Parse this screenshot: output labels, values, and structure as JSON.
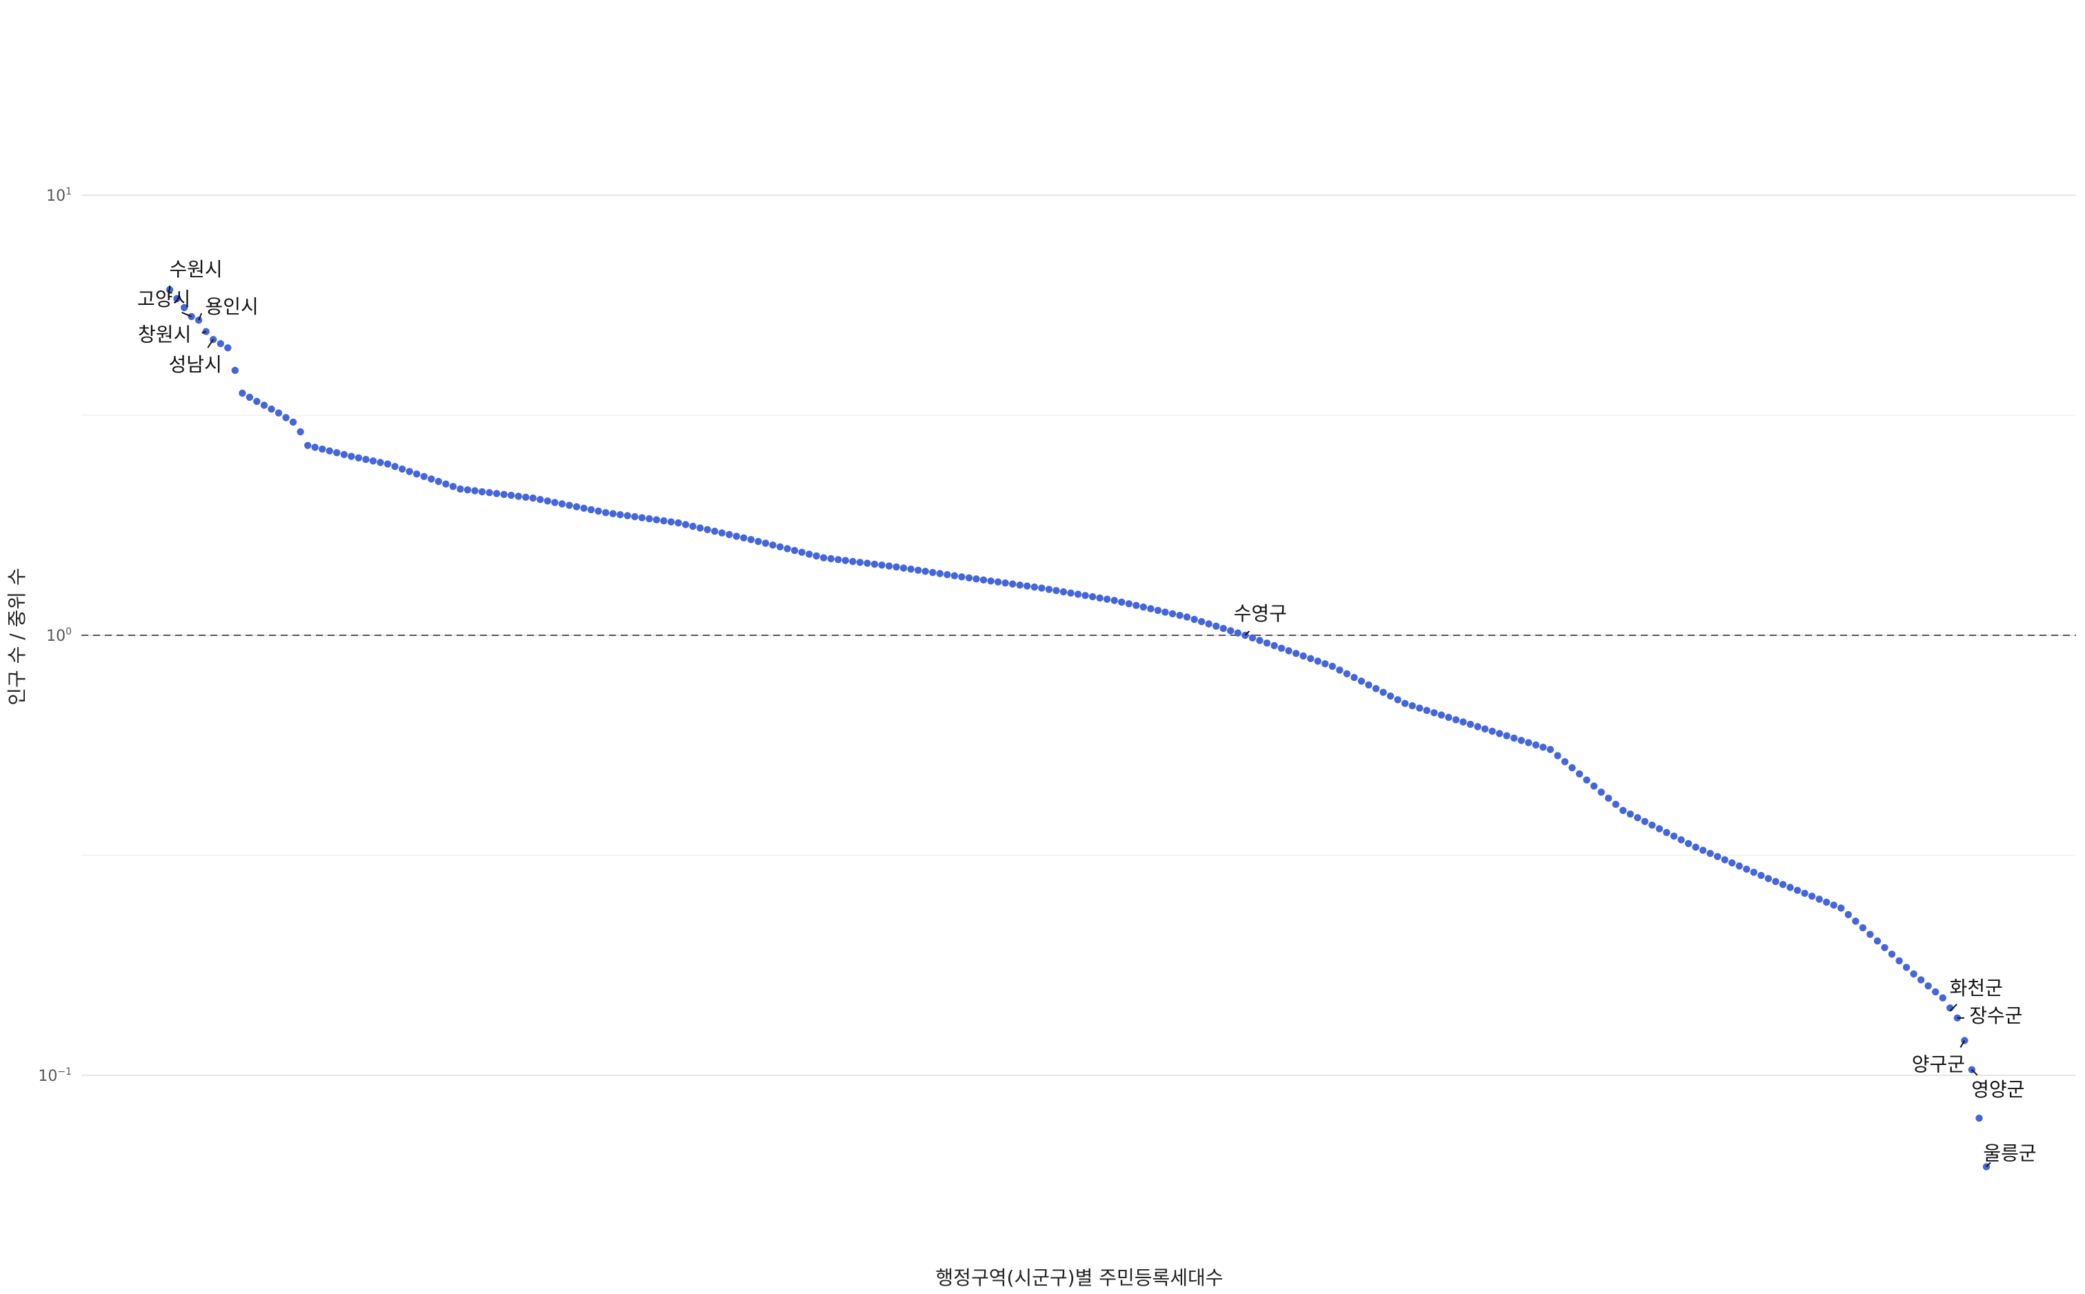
{
  "chart_data": {
    "type": "scatter",
    "xlabel": "행정구역(시군구)별 주민등록세대수",
    "ylabel": "인구 수 / 중위 수",
    "y_scale": "log10",
    "ylim": [
      0.05,
      20
    ],
    "y_ticks": [
      {
        "value": 10,
        "base": "10",
        "exp": "1"
      },
      {
        "value": 1,
        "base": "10",
        "exp": "0"
      },
      {
        "value": 0.1,
        "base": "10",
        "exp": "−1"
      }
    ],
    "reference_line": {
      "value": 1,
      "style": "dashed"
    },
    "grid": true,
    "legend": "none",
    "point_color": "#4466d6",
    "n_points": 251,
    "sorted_descending": true,
    "anchor_values": [
      [
        0,
        6.1
      ],
      [
        3,
        5.3
      ],
      [
        4,
        5.2
      ],
      [
        5,
        4.9
      ],
      [
        6,
        4.7
      ],
      [
        7,
        4.6
      ],
      [
        8,
        4.5
      ],
      [
        9,
        4.0
      ],
      [
        10,
        3.55
      ],
      [
        12,
        3.4
      ],
      [
        15,
        3.2
      ],
      [
        17,
        3.05
      ],
      [
        18,
        2.9
      ],
      [
        19,
        2.7
      ],
      [
        25,
        2.55
      ],
      [
        30,
        2.45
      ],
      [
        40,
        2.15
      ],
      [
        50,
        2.05
      ],
      [
        60,
        1.9
      ],
      [
        70,
        1.8
      ],
      [
        80,
        1.65
      ],
      [
        90,
        1.5
      ],
      [
        100,
        1.43
      ],
      [
        110,
        1.35
      ],
      [
        120,
        1.28
      ],
      [
        130,
        1.2
      ],
      [
        140,
        1.1
      ],
      [
        148,
        1.0
      ],
      [
        160,
        0.85
      ],
      [
        170,
        0.7
      ],
      [
        180,
        0.62
      ],
      [
        190,
        0.55
      ],
      [
        200,
        0.4
      ],
      [
        210,
        0.33
      ],
      [
        220,
        0.28
      ],
      [
        230,
        0.24
      ],
      [
        240,
        0.17
      ],
      [
        244,
        0.15
      ],
      [
        246,
        0.135
      ],
      [
        247,
        0.12
      ],
      [
        248,
        0.103
      ],
      [
        250,
        0.062
      ]
    ],
    "labeled_points": [
      {
        "index": 0,
        "name": "수원시",
        "value": 6.1
      },
      {
        "index": 3,
        "name": "고양시",
        "value": 5.3
      },
      {
        "index": 4,
        "name": "용인시",
        "value": 5.2
      },
      {
        "index": 5,
        "name": "창원시",
        "value": 4.9
      },
      {
        "index": 6,
        "name": "성남시",
        "value": 4.7
      },
      {
        "index": 148,
        "name": "수영구",
        "value": 1.0
      },
      {
        "index": 245,
        "name": "화천군",
        "value": 0.14
      },
      {
        "index": 246,
        "name": "장수군",
        "value": 0.135
      },
      {
        "index": 247,
        "name": "양구군",
        "value": 0.12
      },
      {
        "index": 248,
        "name": "영양군",
        "value": 0.103
      },
      {
        "index": 250,
        "name": "울릉군",
        "value": 0.062
      }
    ]
  }
}
